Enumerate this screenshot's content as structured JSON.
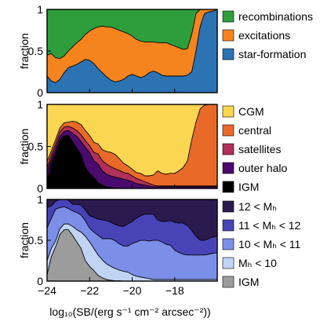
{
  "xlabel": "log₁₀(SB/(erg s⁻¹ cm⁻² arcsec⁻²))",
  "chart_data": [
    {
      "type": "area",
      "stacked": true,
      "xlim": [
        -24,
        -16
      ],
      "ylim": [
        0,
        1
      ],
      "xticks": [
        -24,
        -22,
        -20,
        -18
      ],
      "yticks": [
        "0",
        "0.5",
        "1"
      ],
      "ylabel": "fraction",
      "legend_position": "right",
      "x": [
        -24.0,
        -23.8,
        -23.6,
        -23.4,
        -23.2,
        -23.0,
        -22.8,
        -22.6,
        -22.4,
        -22.2,
        -22.0,
        -21.8,
        -21.6,
        -21.4,
        -21.2,
        -21.0,
        -20.8,
        -20.6,
        -20.4,
        -20.2,
        -20.0,
        -19.8,
        -19.6,
        -19.4,
        -19.2,
        -19.0,
        -18.8,
        -18.6,
        -18.4,
        -18.2,
        -18.0,
        -17.8,
        -17.6,
        -17.4,
        -17.2,
        -17.0,
        -16.8,
        -16.6,
        -16.4,
        -16.2,
        -16.0
      ],
      "series": [
        {
          "name": "star-formation",
          "color": "#2c73b4",
          "values": [
            0.2,
            0.14,
            0.12,
            0.16,
            0.24,
            0.3,
            0.32,
            0.34,
            0.37,
            0.4,
            0.39,
            0.35,
            0.29,
            0.24,
            0.19,
            0.15,
            0.13,
            0.14,
            0.16,
            0.2,
            0.22,
            0.2,
            0.18,
            0.2,
            0.24,
            0.26,
            0.24,
            0.21,
            0.2,
            0.2,
            0.2,
            0.2,
            0.2,
            0.21,
            0.25,
            0.5,
            0.8,
            0.95,
            0.97,
            0.98,
            1.0
          ]
        },
        {
          "name": "excitations",
          "color": "#f5841e",
          "values": [
            0.25,
            0.33,
            0.3,
            0.25,
            0.2,
            0.2,
            0.23,
            0.26,
            0.27,
            0.3,
            0.35,
            0.42,
            0.5,
            0.56,
            0.6,
            0.64,
            0.64,
            0.61,
            0.57,
            0.51,
            0.46,
            0.44,
            0.44,
            0.41,
            0.37,
            0.35,
            0.36,
            0.39,
            0.4,
            0.38,
            0.36,
            0.34,
            0.32,
            0.32,
            0.45,
            0.45,
            0.2,
            0.05,
            0.03,
            0.02,
            0.0
          ]
        },
        {
          "name": "recombinations",
          "color": "#2e9e3c",
          "values": [
            0.55,
            0.53,
            0.58,
            0.59,
            0.56,
            0.5,
            0.45,
            0.4,
            0.36,
            0.3,
            0.26,
            0.23,
            0.21,
            0.2,
            0.21,
            0.21,
            0.23,
            0.25,
            0.27,
            0.29,
            0.32,
            0.36,
            0.38,
            0.39,
            0.39,
            0.39,
            0.4,
            0.4,
            0.4,
            0.42,
            0.44,
            0.46,
            0.48,
            0.47,
            0.3,
            0.05,
            0.0,
            0.0,
            0.0,
            0.0,
            0.0
          ]
        }
      ]
    },
    {
      "type": "area",
      "stacked": true,
      "xlim": [
        -24,
        -16
      ],
      "ylim": [
        0,
        1
      ],
      "xticks": [
        -24,
        -22,
        -20,
        -18
      ],
      "yticks": [
        "0",
        "0.5",
        "1"
      ],
      "ylabel": "fraction",
      "legend_position": "right",
      "x": [
        -24.0,
        -23.8,
        -23.6,
        -23.4,
        -23.2,
        -23.0,
        -22.8,
        -22.6,
        -22.4,
        -22.2,
        -22.0,
        -21.8,
        -21.6,
        -21.4,
        -21.2,
        -21.0,
        -20.8,
        -20.6,
        -20.4,
        -20.2,
        -20.0,
        -19.8,
        -19.6,
        -19.4,
        -19.2,
        -19.0,
        -18.8,
        -18.6,
        -18.4,
        -18.2,
        -18.0,
        -17.8,
        -17.6,
        -17.4,
        -17.2,
        -17.0,
        -16.8,
        -16.6,
        -16.4,
        -16.2,
        -16.0
      ],
      "series": [
        {
          "name": "IGM",
          "color": "#000000",
          "values": [
            0.08,
            0.3,
            0.42,
            0.57,
            0.63,
            0.63,
            0.56,
            0.48,
            0.4,
            0.25,
            0.18,
            0.13,
            0.07,
            0.04,
            0.02,
            0.01,
            0.005,
            0.005,
            0.0,
            0.0,
            0.0,
            0.0,
            0.0,
            0.0,
            0.0,
            0.0,
            0.0,
            0.0,
            0.0,
            0.0,
            0.0,
            0.0,
            0.0,
            0.0,
            0.0,
            0.0,
            0.0,
            0.0,
            0.0,
            0.0,
            0.0
          ]
        },
        {
          "name": "outer halo",
          "color": "#4a0a6e",
          "values": [
            0.12,
            0.05,
            0.06,
            0.05,
            0.05,
            0.06,
            0.1,
            0.14,
            0.16,
            0.24,
            0.25,
            0.2,
            0.22,
            0.17,
            0.15,
            0.14,
            0.13,
            0.12,
            0.11,
            0.1,
            0.08,
            0.06,
            0.05,
            0.04,
            0.03,
            0.02,
            0.02,
            0.02,
            0.02,
            0.02,
            0.02,
            0.02,
            0.02,
            0.02,
            0.02,
            0.02,
            0.02,
            0.02,
            0.02,
            0.02,
            0.02
          ]
        },
        {
          "name": "satellites",
          "color": "#b0305a",
          "values": [
            0.05,
            0.05,
            0.05,
            0.05,
            0.05,
            0.05,
            0.06,
            0.07,
            0.08,
            0.08,
            0.08,
            0.1,
            0.12,
            0.12,
            0.12,
            0.11,
            0.1,
            0.09,
            0.08,
            0.08,
            0.07,
            0.06,
            0.05,
            0.04,
            0.03,
            0.02,
            0.01,
            0.01,
            0.01,
            0.01,
            0.01,
            0.01,
            0.01,
            0.01,
            0.01,
            0.01,
            0.01,
            0.01,
            0.01,
            0.01,
            0.01
          ]
        },
        {
          "name": "central",
          "color": "#e96a28",
          "values": [
            0.07,
            0.05,
            0.05,
            0.05,
            0.05,
            0.05,
            0.08,
            0.1,
            0.12,
            0.12,
            0.12,
            0.12,
            0.12,
            0.13,
            0.15,
            0.17,
            0.17,
            0.14,
            0.11,
            0.09,
            0.08,
            0.07,
            0.08,
            0.07,
            0.09,
            0.12,
            0.18,
            0.15,
            0.14,
            0.15,
            0.15,
            0.18,
            0.22,
            0.3,
            0.55,
            0.76,
            0.92,
            0.96,
            0.97,
            0.97,
            0.97
          ]
        },
        {
          "name": "CGM",
          "color": "#fbd751",
          "values": [
            0.68,
            0.55,
            0.42,
            0.28,
            0.22,
            0.21,
            0.2,
            0.21,
            0.24,
            0.31,
            0.37,
            0.45,
            0.47,
            0.54,
            0.56,
            0.57,
            0.595,
            0.645,
            0.7,
            0.73,
            0.77,
            0.81,
            0.82,
            0.85,
            0.85,
            0.84,
            0.79,
            0.82,
            0.83,
            0.82,
            0.82,
            0.79,
            0.75,
            0.67,
            0.42,
            0.21,
            0.05,
            0.01,
            0.0,
            0.0,
            0.0
          ]
        }
      ]
    },
    {
      "type": "area",
      "stacked": true,
      "xlim": [
        -24,
        -16
      ],
      "ylim": [
        0,
        1
      ],
      "xticks": [
        -24,
        -22,
        -20,
        -18
      ],
      "yticks": [
        "0",
        "0.5",
        "1"
      ],
      "ylabel": "fraction",
      "legend_position": "right",
      "x": [
        -24.0,
        -23.8,
        -23.6,
        -23.4,
        -23.2,
        -23.0,
        -22.8,
        -22.6,
        -22.4,
        -22.2,
        -22.0,
        -21.8,
        -21.6,
        -21.4,
        -21.2,
        -21.0,
        -20.8,
        -20.6,
        -20.4,
        -20.2,
        -20.0,
        -19.8,
        -19.6,
        -19.4,
        -19.2,
        -19.0,
        -18.8,
        -18.6,
        -18.4,
        -18.2,
        -18.0,
        -17.8,
        -17.6,
        -17.4,
        -17.2,
        -17.0,
        -16.8,
        -16.6,
        -16.4,
        -16.2,
        -16.0
      ],
      "series": [
        {
          "name": "IGM",
          "color": "#9c9c9c",
          "values": [
            0.08,
            0.3,
            0.42,
            0.57,
            0.63,
            0.63,
            0.56,
            0.48,
            0.4,
            0.25,
            0.18,
            0.13,
            0.07,
            0.04,
            0.02,
            0.01,
            0.005,
            0.005,
            0.0,
            0.0,
            0.0,
            0.0,
            0.0,
            0.0,
            0.0,
            0.0,
            0.0,
            0.0,
            0.0,
            0.0,
            0.0,
            0.0,
            0.0,
            0.0,
            0.0,
            0.0,
            0.0,
            0.0,
            0.0,
            0.0,
            0.0
          ]
        },
        {
          "name": "Mₕ < 10",
          "color": "#c2d4f4",
          "values": [
            0.17,
            0.1,
            0.07,
            0.07,
            0.07,
            0.07,
            0.11,
            0.15,
            0.2,
            0.3,
            0.3,
            0.27,
            0.25,
            0.22,
            0.19,
            0.17,
            0.15,
            0.13,
            0.12,
            0.11,
            0.08,
            0.06,
            0.05,
            0.04,
            0.03,
            0.02,
            0.02,
            0.02,
            0.02,
            0.02,
            0.02,
            0.02,
            0.02,
            0.02,
            0.02,
            0.02,
            0.02,
            0.02,
            0.02,
            0.02,
            0.02
          ]
        },
        {
          "name": "10 < Mₕ < 11",
          "color": "#7b8fe8",
          "values": [
            0.4,
            0.37,
            0.39,
            0.26,
            0.21,
            0.19,
            0.19,
            0.21,
            0.21,
            0.19,
            0.17,
            0.2,
            0.24,
            0.26,
            0.31,
            0.34,
            0.34,
            0.32,
            0.31,
            0.32,
            0.38,
            0.42,
            0.45,
            0.46,
            0.46,
            0.48,
            0.48,
            0.46,
            0.43,
            0.42,
            0.36,
            0.33,
            0.31,
            0.3,
            0.3,
            0.3,
            0.3,
            0.3,
            0.31,
            0.32,
            0.33
          ]
        },
        {
          "name": "11 < Mₕ < 12",
          "color": "#4844b8",
          "values": [
            0.25,
            0.15,
            0.1,
            0.1,
            0.1,
            0.1,
            0.08,
            0.1,
            0.12,
            0.13,
            0.15,
            0.18,
            0.2,
            0.23,
            0.22,
            0.2,
            0.2,
            0.22,
            0.24,
            0.27,
            0.27,
            0.29,
            0.3,
            0.32,
            0.33,
            0.32,
            0.25,
            0.25,
            0.28,
            0.3,
            0.34,
            0.36,
            0.38,
            0.36,
            0.3,
            0.23,
            0.18,
            0.18,
            0.19,
            0.2,
            0.2
          ]
        },
        {
          "name": "12 < Mₕ",
          "color": "#2b1a4e",
          "values": [
            0.1,
            0.08,
            0.02,
            0.0,
            -0.01,
            0.01,
            0.06,
            0.06,
            0.07,
            0.13,
            0.2,
            0.22,
            0.24,
            0.25,
            0.26,
            0.28,
            0.305,
            0.325,
            0.33,
            0.3,
            0.27,
            0.23,
            0.2,
            0.18,
            0.18,
            0.18,
            0.25,
            0.27,
            0.27,
            0.26,
            0.28,
            0.29,
            0.29,
            0.32,
            0.38,
            0.45,
            0.5,
            0.5,
            0.48,
            0.46,
            0.45
          ]
        }
      ]
    }
  ]
}
